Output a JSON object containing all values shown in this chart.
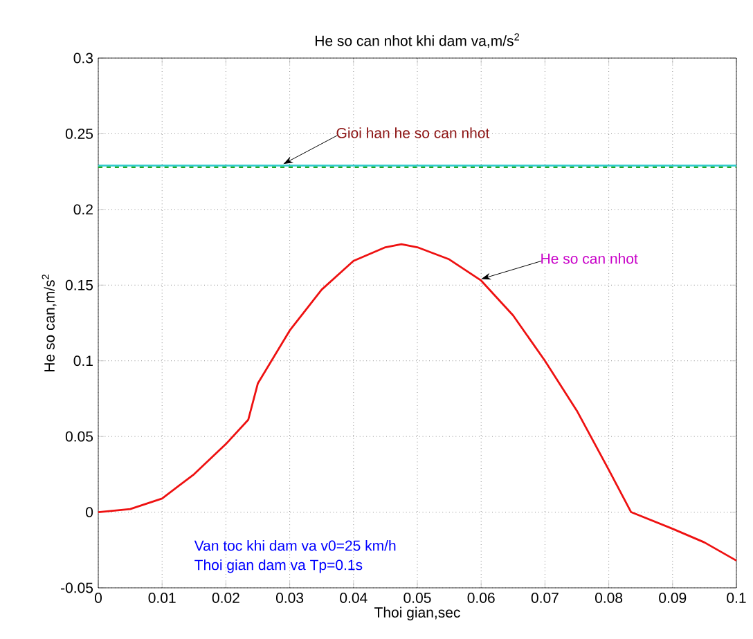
{
  "chart_data": {
    "type": "line",
    "title": "He so can nhot khi dam va,m/s$^{2}$",
    "xlabel": "Thoi gian,sec",
    "ylabel": "He so can,m/s$^{2}$",
    "xlim": [
      0,
      0.1
    ],
    "ylim": [
      -0.05,
      0.3
    ],
    "xticks": [
      0,
      0.01,
      0.02,
      0.03,
      0.04,
      0.05,
      0.06,
      0.07,
      0.08,
      0.09,
      0.1
    ],
    "yticks": [
      -0.05,
      0,
      0.05,
      0.1,
      0.15,
      0.2,
      0.25,
      0.3
    ],
    "grid": true,
    "marker": "none",
    "series": [
      {
        "color": "#22aa22",
        "line_style": "dashed",
        "x": [
          0,
          0.1
        ],
        "values": [
          0.228,
          0.228
        ]
      },
      {
        "color": "#33cccc",
        "line_style": "solid",
        "x": [
          0,
          0.1
        ],
        "values": [
          0.229,
          0.229
        ]
      },
      {
        "color": "#ee1111",
        "line_style": "solid",
        "x": [
          0,
          0.005,
          0.01,
          0.015,
          0.02,
          0.0235,
          0.025,
          0.03,
          0.035,
          0.04,
          0.045,
          0.0475,
          0.05,
          0.055,
          0.06,
          0.065,
          0.07,
          0.075,
          0.08,
          0.0835,
          0.09,
          0.095,
          0.1
        ],
        "values": [
          0,
          0.002,
          0.009,
          0.025,
          0.045,
          0.061,
          0.085,
          0.12,
          0.147,
          0.166,
          0.175,
          0.177,
          0.175,
          0.167,
          0.153,
          0.13,
          0.1,
          0.067,
          0.028,
          0,
          -0.011,
          -0.02,
          -0.032
        ]
      }
    ],
    "annotations": [
      {
        "text": "Gioi han he so can nhot",
        "x": 0.029,
        "y": 0.23
      },
      {
        "text": "He so can nhot",
        "x": 0.06,
        "y": 0.154
      },
      "Van toc khi dam va v0=25 km/h",
      "Thoi gian dam va    Tp=0.1s"
    ]
  }
}
